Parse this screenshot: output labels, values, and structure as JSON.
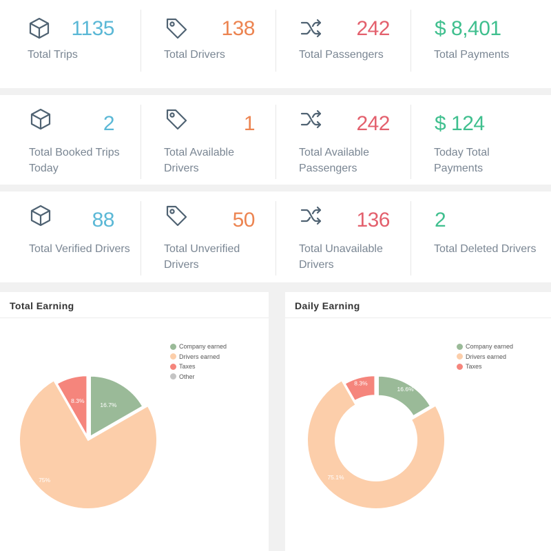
{
  "colors": {
    "blue": "#5bb8d6",
    "orange": "#ec8451",
    "red": "#e3606d",
    "green": "#3fbf8e"
  },
  "stats": [
    {
      "icon": "box-icon",
      "value": "1135",
      "label": "Total Trips",
      "color": "blue"
    },
    {
      "icon": "tag-icon",
      "value": "138",
      "label": "Total Drivers",
      "color": "orange"
    },
    {
      "icon": "shuffle-icon",
      "value": "242",
      "label": "Total Passengers",
      "color": "red"
    },
    {
      "icon": "dollar-icon",
      "value": "$ 8,401",
      "label": "Total Payments",
      "color": "green"
    },
    {
      "icon": "box-icon",
      "value": "2",
      "label": "Total Booked Trips Today",
      "color": "blue"
    },
    {
      "icon": "tag-icon",
      "value": "1",
      "label": "Total Available Drivers",
      "color": "orange"
    },
    {
      "icon": "shuffle-icon",
      "value": "242",
      "label": "Total Available Passengers",
      "color": "red"
    },
    {
      "icon": "dollar-icon",
      "value": "$ 124",
      "label": "Today Total Payments",
      "color": "green"
    },
    {
      "icon": "box-icon",
      "value": "88",
      "label": "Total Verified Drivers",
      "color": "blue"
    },
    {
      "icon": "tag-icon",
      "value": "50",
      "label": "Total Unverified Drivers",
      "color": "orange"
    },
    {
      "icon": "shuffle-icon",
      "value": "136",
      "label": "Total Unavailable Drivers",
      "color": "red"
    },
    {
      "icon": "number-icon",
      "value": "2",
      "label": "Total Deleted Drivers",
      "color": "green"
    }
  ],
  "panels": {
    "total_earning": {
      "title": "Total Earning"
    },
    "daily_earning": {
      "title": "Daily Earning"
    }
  },
  "chart_data": [
    {
      "type": "pie",
      "title": "Total Earning",
      "categories": [
        "Company earned",
        "Drivers earned",
        "Taxes",
        "Other"
      ],
      "values": [
        16.7,
        75,
        8.3,
        0
      ],
      "data_labels": [
        "16.7%",
        "75%",
        "8.3%",
        ""
      ],
      "colors": [
        "#9aba98",
        "#fcceaa",
        "#f5857c",
        "#c4c4c4"
      ],
      "legend_position": "top-right"
    },
    {
      "type": "pie",
      "title": "Daily Earning",
      "categories": [
        "Company earned",
        "Drivers earned",
        "Taxes"
      ],
      "values": [
        16.6,
        75.1,
        8.3
      ],
      "data_labels": [
        "16.6%",
        "75.1%",
        "8.3%"
      ],
      "colors": [
        "#9aba98",
        "#fcceaa",
        "#f5857c"
      ],
      "legend_position": "top-right",
      "donut": true
    }
  ]
}
